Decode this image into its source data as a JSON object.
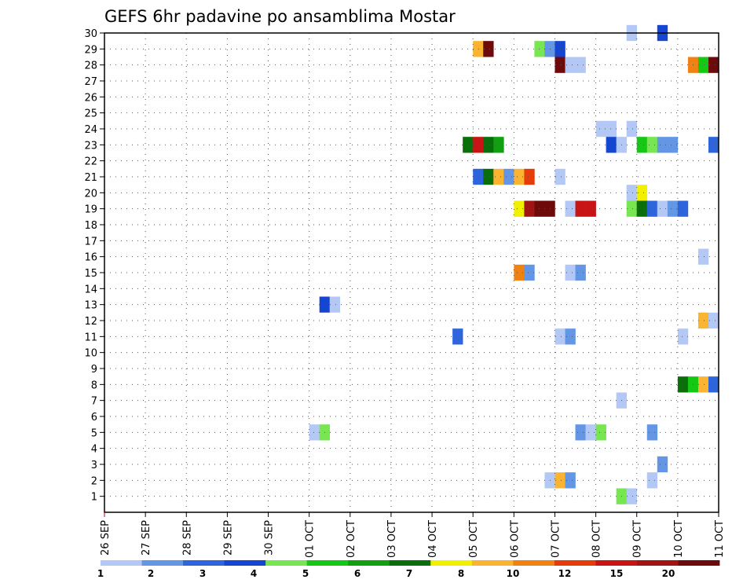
{
  "chart_data": {
    "type": "heatmap",
    "title": "GEFS 6hr padavine po ansamblima Mostar",
    "x_tick_labels": [
      "26 SEP",
      "27 SEP",
      "28 SEP",
      "29 SEP",
      "30 SEP",
      "01 OCT",
      "02 OCT",
      "03 OCT",
      "04 OCT",
      "05 OCT",
      "06 OCT",
      "07 OCT",
      "08 OCT",
      "09 OCT",
      "10 OCT",
      "11 OCT"
    ],
    "y_tick_labels": [
      1,
      2,
      3,
      4,
      5,
      6,
      7,
      8,
      9,
      10,
      11,
      12,
      13,
      14,
      15,
      16,
      17,
      18,
      19,
      20,
      21,
      22,
      23,
      24,
      25,
      26,
      27,
      28,
      29,
      30
    ],
    "xlim_days": [
      0,
      15
    ],
    "ylim": [
      0,
      30
    ],
    "grid": true,
    "colorbar": {
      "labels": [
        "1",
        "2",
        "3",
        "4",
        "5",
        "6",
        "7",
        "8",
        "10",
        "12",
        "15",
        "20"
      ],
      "colors": [
        "#b4c8f5",
        "#6496e6",
        "#2e64dc",
        "#1446d2",
        "#78e650",
        "#14c814",
        "#10a010",
        "#0a6e0a",
        "#f0f000",
        "#fab432",
        "#f08214",
        "#e63c0a",
        "#c81414",
        "#a01414",
        "#6e0a0a"
      ]
    },
    "cells": [
      {
        "member": 30,
        "day": 12.75,
        "level": 1
      },
      {
        "member": 30,
        "day": 13.5,
        "level": 4
      },
      {
        "member": 29,
        "day": 9.0,
        "level": 10
      },
      {
        "member": 29,
        "day": 9.25,
        "level": 15
      },
      {
        "member": 29,
        "day": 10.5,
        "level": 5
      },
      {
        "member": 29,
        "day": 10.75,
        "level": 2
      },
      {
        "member": 29,
        "day": 11.0,
        "level": 4
      },
      {
        "member": 28,
        "day": 11.0,
        "level": 15
      },
      {
        "member": 28,
        "day": 11.25,
        "level": 1
      },
      {
        "member": 28,
        "day": 11.5,
        "level": 1
      },
      {
        "member": 28,
        "day": 14.25,
        "level": 11
      },
      {
        "member": 28,
        "day": 14.5,
        "level": 6
      },
      {
        "member": 28,
        "day": 14.75,
        "level": 15
      },
      {
        "member": 24,
        "day": 12.0,
        "level": 1
      },
      {
        "member": 24,
        "day": 12.25,
        "level": 1
      },
      {
        "member": 24,
        "day": 12.75,
        "level": 1
      },
      {
        "member": 23,
        "day": 8.75,
        "level": 8
      },
      {
        "member": 23,
        "day": 9.0,
        "level": 13
      },
      {
        "member": 23,
        "day": 9.25,
        "level": 8
      },
      {
        "member": 23,
        "day": 9.5,
        "level": 7
      },
      {
        "member": 23,
        "day": 12.25,
        "level": 4
      },
      {
        "member": 23,
        "day": 12.5,
        "level": 1
      },
      {
        "member": 23,
        "day": 13.0,
        "level": 6
      },
      {
        "member": 23,
        "day": 13.25,
        "level": 5
      },
      {
        "member": 23,
        "day": 13.5,
        "level": 2
      },
      {
        "member": 23,
        "day": 13.75,
        "level": 2
      },
      {
        "member": 23,
        "day": 14.75,
        "level": 3
      },
      {
        "member": 21,
        "day": 9.0,
        "level": 3
      },
      {
        "member": 21,
        "day": 9.25,
        "level": 8
      },
      {
        "member": 21,
        "day": 9.5,
        "level": 10
      },
      {
        "member": 21,
        "day": 9.75,
        "level": 2
      },
      {
        "member": 21,
        "day": 10.0,
        "level": 10
      },
      {
        "member": 21,
        "day": 10.25,
        "level": 12
      },
      {
        "member": 21,
        "day": 11.0,
        "level": 1
      },
      {
        "member": 20,
        "day": 12.75,
        "level": 1
      },
      {
        "member": 20,
        "day": 13.0,
        "level": 9
      },
      {
        "member": 19,
        "day": 10.0,
        "level": 9
      },
      {
        "member": 19,
        "day": 10.25,
        "level": 14
      },
      {
        "member": 19,
        "day": 10.5,
        "level": 15
      },
      {
        "member": 19,
        "day": 10.75,
        "level": 15
      },
      {
        "member": 19,
        "day": 11.25,
        "level": 1
      },
      {
        "member": 19,
        "day": 11.5,
        "level": 13
      },
      {
        "member": 19,
        "day": 11.75,
        "level": 13
      },
      {
        "member": 19,
        "day": 12.75,
        "level": 5
      },
      {
        "member": 19,
        "day": 13.0,
        "level": 8
      },
      {
        "member": 19,
        "day": 13.25,
        "level": 3
      },
      {
        "member": 19,
        "day": 13.5,
        "level": 1
      },
      {
        "member": 19,
        "day": 13.75,
        "level": 2
      },
      {
        "member": 19,
        "day": 14.0,
        "level": 3
      },
      {
        "member": 16,
        "day": 14.5,
        "level": 1
      },
      {
        "member": 15,
        "day": 10.0,
        "level": 11
      },
      {
        "member": 15,
        "day": 10.25,
        "level": 2
      },
      {
        "member": 15,
        "day": 11.25,
        "level": 1
      },
      {
        "member": 15,
        "day": 11.5,
        "level": 2
      },
      {
        "member": 13,
        "day": 5.25,
        "level": 4
      },
      {
        "member": 13,
        "day": 5.5,
        "level": 1
      },
      {
        "member": 12,
        "day": 14.5,
        "level": 10
      },
      {
        "member": 12,
        "day": 14.75,
        "level": 1
      },
      {
        "member": 11,
        "day": 8.5,
        "level": 3
      },
      {
        "member": 11,
        "day": 11.0,
        "level": 1
      },
      {
        "member": 11,
        "day": 11.25,
        "level": 2
      },
      {
        "member": 11,
        "day": 14.0,
        "level": 1
      },
      {
        "member": 8,
        "day": 14.0,
        "level": 8
      },
      {
        "member": 8,
        "day": 14.25,
        "level": 6
      },
      {
        "member": 8,
        "day": 14.5,
        "level": 10
      },
      {
        "member": 8,
        "day": 14.75,
        "level": 3
      },
      {
        "member": 7,
        "day": 12.5,
        "level": 1
      },
      {
        "member": 5,
        "day": 5.0,
        "level": 1
      },
      {
        "member": 5,
        "day": 5.25,
        "level": 5
      },
      {
        "member": 5,
        "day": 11.5,
        "level": 2
      },
      {
        "member": 5,
        "day": 11.75,
        "level": 1
      },
      {
        "member": 5,
        "day": 12.0,
        "level": 5
      },
      {
        "member": 5,
        "day": 13.25,
        "level": 2
      },
      {
        "member": 3,
        "day": 13.5,
        "level": 2
      },
      {
        "member": 2,
        "day": 10.75,
        "level": 1
      },
      {
        "member": 2,
        "day": 11.0,
        "level": 10
      },
      {
        "member": 2,
        "day": 11.25,
        "level": 2
      },
      {
        "member": 2,
        "day": 13.25,
        "level": 1
      },
      {
        "member": 1,
        "day": 12.5,
        "level": 5
      },
      {
        "member": 1,
        "day": 12.75,
        "level": 1
      }
    ]
  }
}
